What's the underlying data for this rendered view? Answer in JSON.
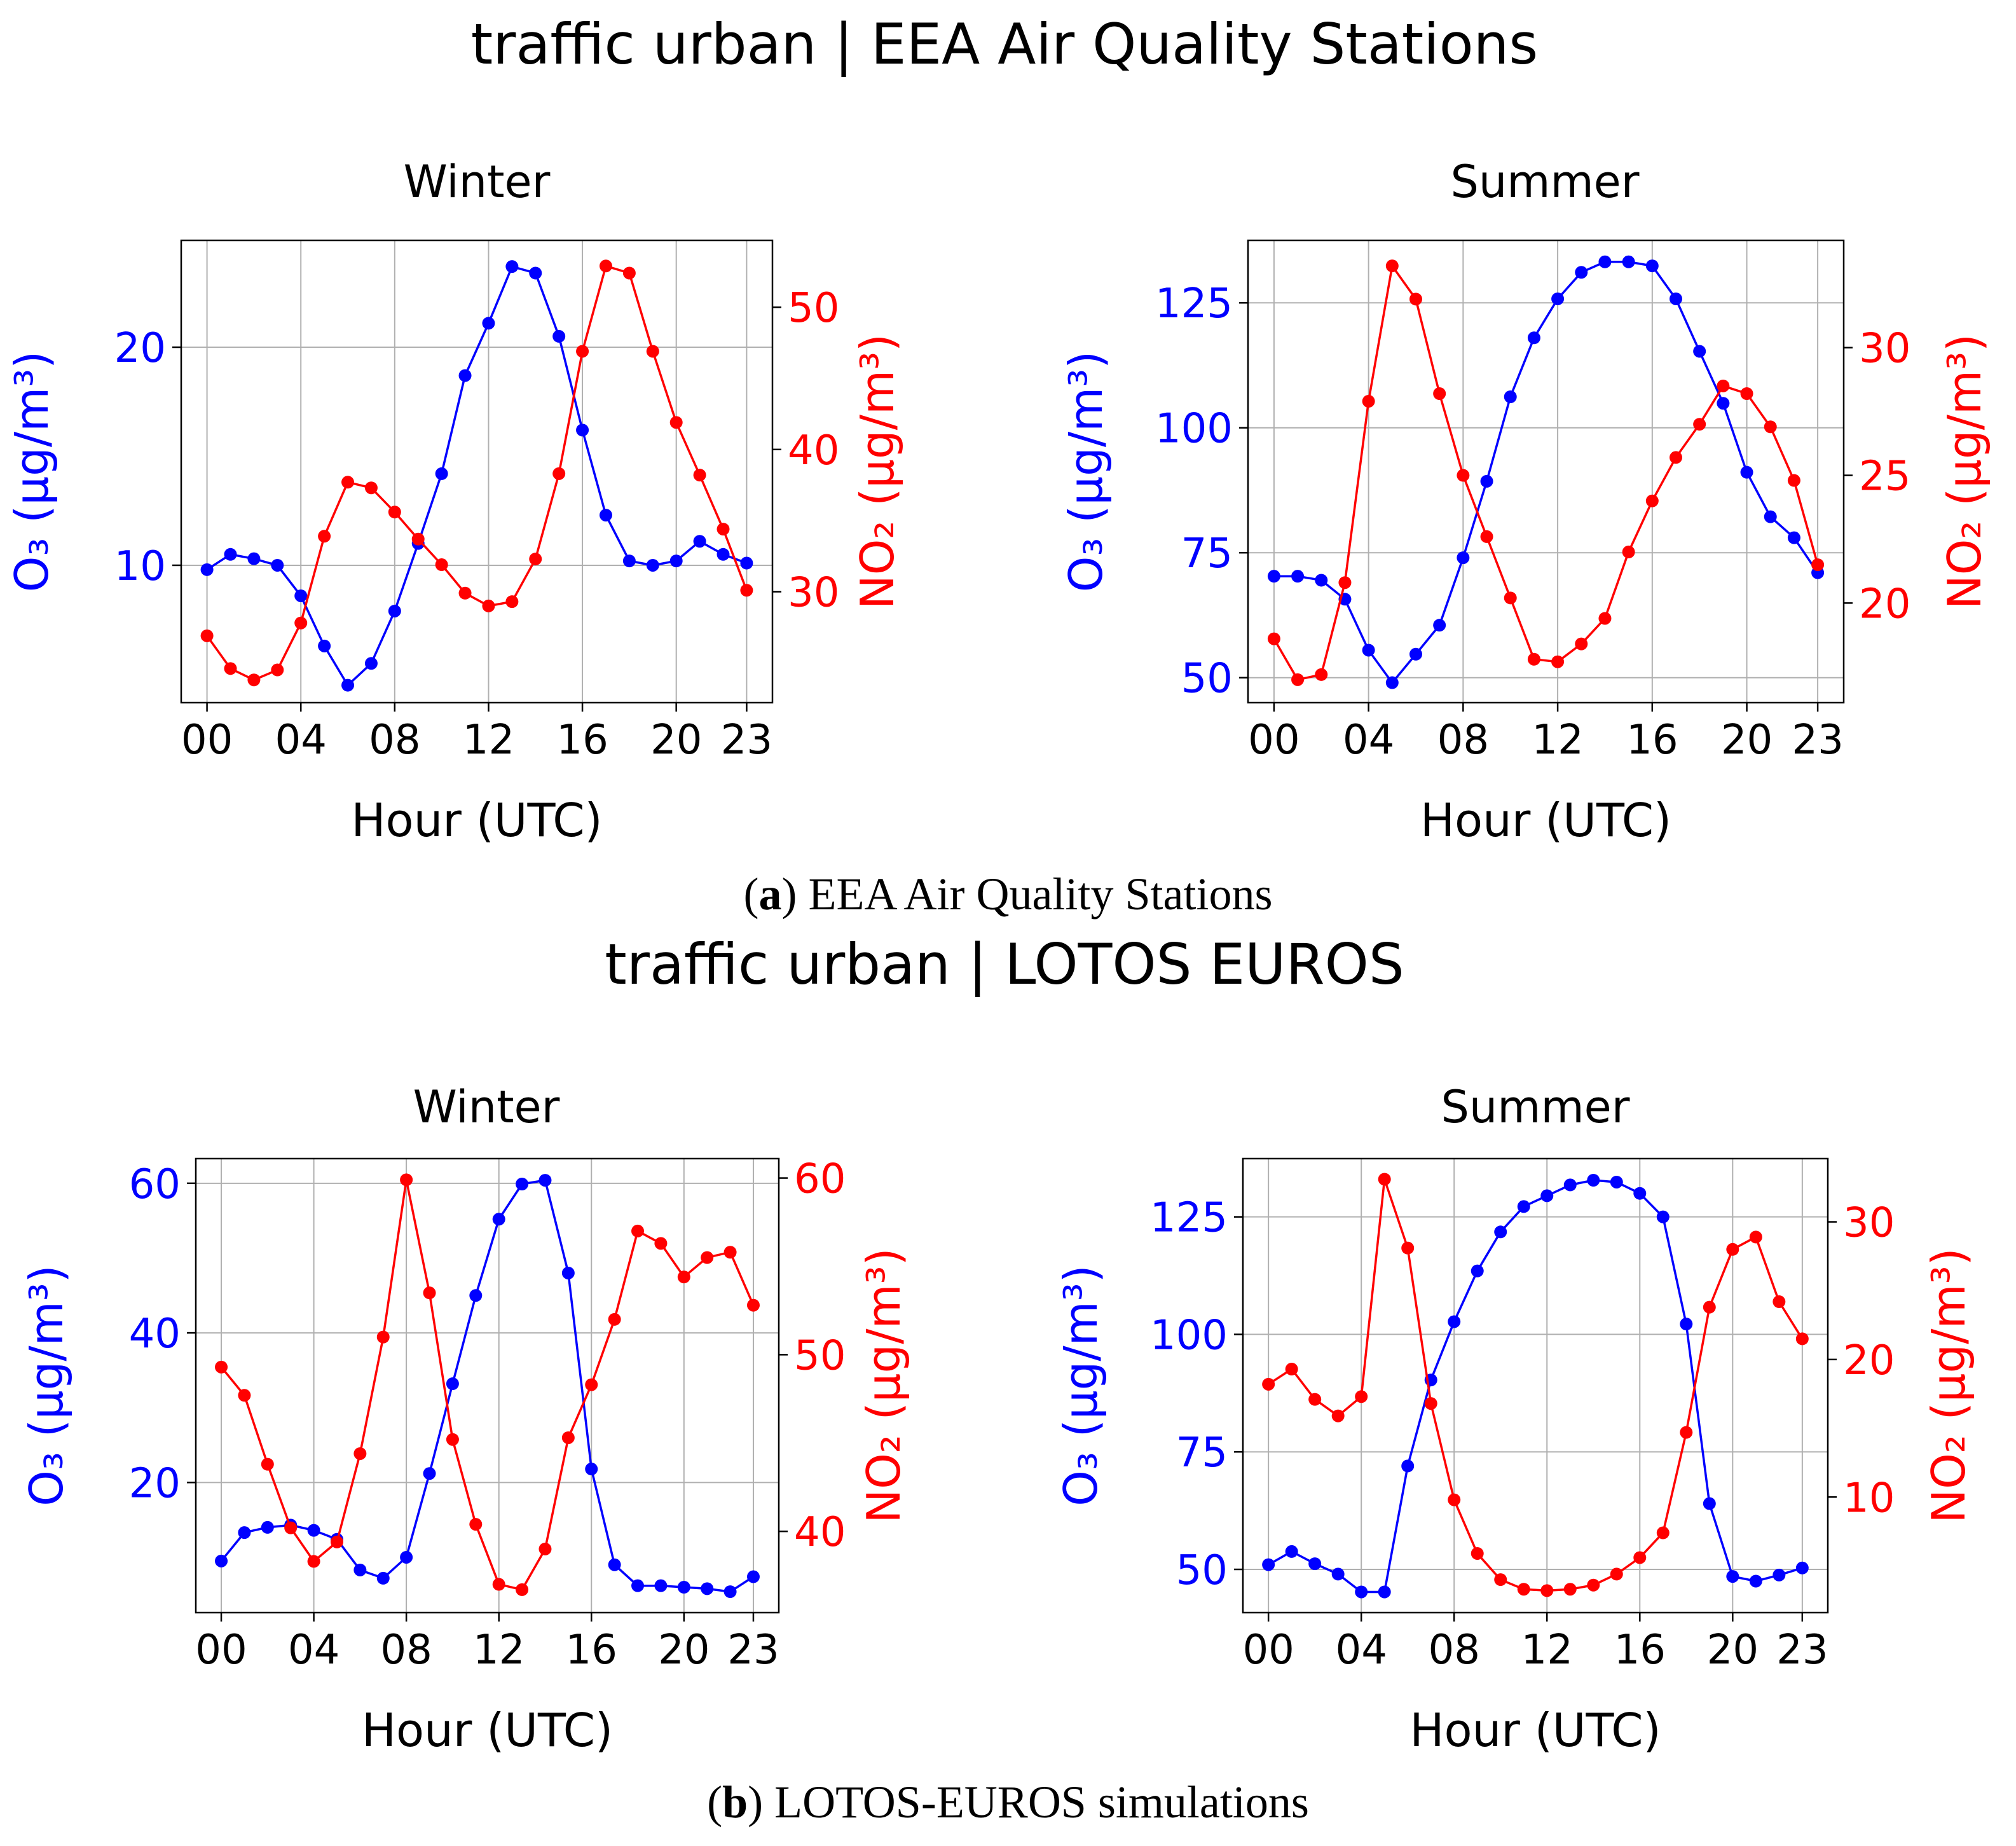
{
  "figure": {
    "section_a": {
      "title": "traffic urban | EEA Air Quality Stations",
      "caption_letter": "a",
      "caption_text": " EEA Air Quality Stations"
    },
    "section_b": {
      "title": "traffic urban | LOTOS EUROS",
      "caption_letter": "b",
      "caption_text": " LOTOS-EUROS simulations"
    },
    "paren_open": "(",
    "paren_close": ")",
    "colors": {
      "o3": "#0000ff",
      "no2": "#ff0000",
      "grid": "#b0b0b0"
    }
  },
  "chart_data": [
    {
      "type": "line",
      "panel": "EEA Winter",
      "title": "Winter",
      "xlabel": "Hour (UTC)",
      "ylabel_left": "O₃ (µg/m³)",
      "ylabel_right": "NO₂ (µg/m³)",
      "x": [
        0,
        1,
        2,
        3,
        4,
        5,
        6,
        7,
        8,
        9,
        10,
        11,
        12,
        13,
        14,
        15,
        16,
        17,
        18,
        19,
        20,
        21,
        22,
        23
      ],
      "xticks": [
        "00",
        "04",
        "08",
        "12",
        "16",
        "20",
        "23"
      ],
      "xtick_values": [
        0,
        4,
        8,
        12,
        16,
        20,
        23
      ],
      "xlim": [
        -1.1,
        24.1
      ],
      "series": [
        {
          "name": "O3",
          "axis": "left",
          "color": "#0000ff",
          "values": [
            9.8,
            10.5,
            10.3,
            10.0,
            8.6,
            6.3,
            4.5,
            5.5,
            7.9,
            11.0,
            14.2,
            18.7,
            21.1,
            23.7,
            23.4,
            20.5,
            16.2,
            12.3,
            10.2,
            10.0,
            10.2,
            11.1,
            10.5,
            10.1
          ]
        },
        {
          "name": "NO2",
          "axis": "right",
          "color": "#ff0000",
          "values": [
            26.9,
            24.6,
            23.8,
            24.5,
            27.8,
            33.9,
            37.7,
            37.3,
            35.6,
            33.7,
            31.9,
            29.9,
            29.0,
            29.3,
            32.3,
            38.3,
            46.9,
            52.9,
            52.4,
            46.9,
            41.9,
            38.2,
            34.4,
            30.1
          ]
        }
      ],
      "ylim_left": [
        3.7,
        24.9
      ],
      "yticks_left": [
        10,
        20
      ],
      "ylim_right": [
        22.2,
        54.7
      ],
      "yticks_right": [
        30,
        40,
        50
      ]
    },
    {
      "type": "line",
      "panel": "EEA Summer",
      "title": "Summer",
      "xlabel": "Hour (UTC)",
      "ylabel_left": "O₃ (µg/m³)",
      "ylabel_right": "NO₂ (µg/m³)",
      "x": [
        0,
        1,
        2,
        3,
        4,
        5,
        6,
        7,
        8,
        9,
        10,
        11,
        12,
        13,
        14,
        15,
        16,
        17,
        18,
        19,
        20,
        21,
        22,
        23
      ],
      "xticks": [
        "00",
        "04",
        "08",
        "12",
        "16",
        "20",
        "23"
      ],
      "xtick_values": [
        0,
        4,
        8,
        12,
        16,
        20,
        23
      ],
      "xlim": [
        -1.1,
        24.1
      ],
      "series": [
        {
          "name": "O3",
          "axis": "left",
          "color": "#0000ff",
          "values": [
            70.3,
            70.3,
            69.5,
            65.7,
            55.5,
            49.0,
            54.7,
            60.5,
            74.0,
            89.3,
            106.2,
            118.0,
            125.8,
            131.1,
            133.2,
            133.2,
            132.4,
            125.8,
            115.3,
            104.9,
            91.1,
            82.2,
            78.0,
            71.0
          ]
        },
        {
          "name": "NO2",
          "axis": "right",
          "color": "#ff0000",
          "values": [
            18.6,
            17.0,
            17.2,
            20.8,
            27.9,
            33.2,
            31.9,
            28.2,
            25.0,
            22.6,
            20.2,
            17.8,
            17.7,
            18.4,
            19.4,
            22.0,
            24.0,
            25.7,
            27.0,
            28.5,
            28.2,
            26.9,
            24.8,
            21.5
          ]
        }
      ],
      "ylim_left": [
        45.0,
        137.5
      ],
      "yticks_left": [
        50,
        75,
        100,
        125
      ],
      "ylim_right": [
        16.1,
        34.2
      ],
      "yticks_right": [
        20,
        25,
        30
      ]
    },
    {
      "type": "line",
      "panel": "LOTOS-EUROS Winter",
      "title": "Winter",
      "xlabel": "Hour (UTC)",
      "ylabel_left": "O₃ (µg/m³)",
      "ylabel_right": "NO₂ (µg/m³)",
      "x": [
        0,
        1,
        2,
        3,
        4,
        5,
        6,
        7,
        8,
        9,
        10,
        11,
        12,
        13,
        14,
        15,
        16,
        17,
        18,
        19,
        20,
        21,
        22,
        23
      ],
      "xticks": [
        "00",
        "04",
        "08",
        "12",
        "16",
        "20",
        "23"
      ],
      "xtick_values": [
        0,
        4,
        8,
        12,
        16,
        20,
        23
      ],
      "xlim": [
        -1.1,
        24.1
      ],
      "series": [
        {
          "name": "O3",
          "axis": "left",
          "color": "#0000ff",
          "values": [
            9.5,
            13.3,
            14.0,
            14.3,
            13.6,
            12.4,
            8.3,
            7.2,
            10.0,
            21.2,
            33.2,
            45.0,
            55.2,
            59.9,
            60.4,
            48.0,
            21.8,
            9.0,
            6.2,
            6.2,
            6.0,
            5.8,
            5.4,
            7.4
          ]
        },
        {
          "name": "NO2",
          "axis": "right",
          "color": "#ff0000",
          "values": [
            49.3,
            47.7,
            43.8,
            40.2,
            38.3,
            39.4,
            44.4,
            51.0,
            59.9,
            53.5,
            45.2,
            40.4,
            37.0,
            36.7,
            39.0,
            45.3,
            48.3,
            52.0,
            57.0,
            56.3,
            54.4,
            55.5,
            55.8,
            52.8
          ]
        }
      ],
      "ylim_left": [
        2.6,
        63.3
      ],
      "yticks_left": [
        20,
        40,
        60
      ],
      "ylim_right": [
        35.4,
        61.1
      ],
      "yticks_right": [
        40,
        50,
        60
      ]
    },
    {
      "type": "line",
      "panel": "LOTOS-EUROS Summer",
      "title": "Summer",
      "xlabel": "Hour (UTC)",
      "ylabel_left": "O₃ (µg/m³)",
      "ylabel_right": "NO₂ (µg/m³)",
      "x": [
        0,
        1,
        2,
        3,
        4,
        5,
        6,
        7,
        8,
        9,
        10,
        11,
        12,
        13,
        14,
        15,
        16,
        17,
        18,
        19,
        20,
        21,
        22,
        23
      ],
      "xticks": [
        "00",
        "04",
        "08",
        "12",
        "16",
        "20",
        "23"
      ],
      "xtick_values": [
        0,
        4,
        8,
        12,
        16,
        20,
        23
      ],
      "xlim": [
        -1.1,
        24.1
      ],
      "series": [
        {
          "name": "O3",
          "axis": "left",
          "color": "#0000ff",
          "values": [
            51.0,
            53.8,
            51.2,
            49.0,
            45.2,
            45.2,
            72.0,
            90.3,
            102.7,
            113.5,
            121.8,
            127.2,
            129.5,
            131.8,
            132.8,
            132.4,
            130.0,
            125.0,
            102.2,
            64.0,
            48.5,
            47.5,
            48.8,
            50.3
          ]
        },
        {
          "name": "NO2",
          "axis": "right",
          "color": "#ff0000",
          "values": [
            18.2,
            19.3,
            17.1,
            15.9,
            17.3,
            33.1,
            28.1,
            16.8,
            9.8,
            5.9,
            4.0,
            3.3,
            3.2,
            3.3,
            3.6,
            4.4,
            5.6,
            7.4,
            14.7,
            23.8,
            28.0,
            28.9,
            24.2,
            21.5
          ]
        }
      ],
      "ylim_left": [
        40.8,
        137.4
      ],
      "yticks_left": [
        50,
        75,
        100,
        125
      ],
      "ylim_right": [
        1.6,
        34.6
      ],
      "yticks_right": [
        10,
        20,
        30
      ]
    }
  ]
}
